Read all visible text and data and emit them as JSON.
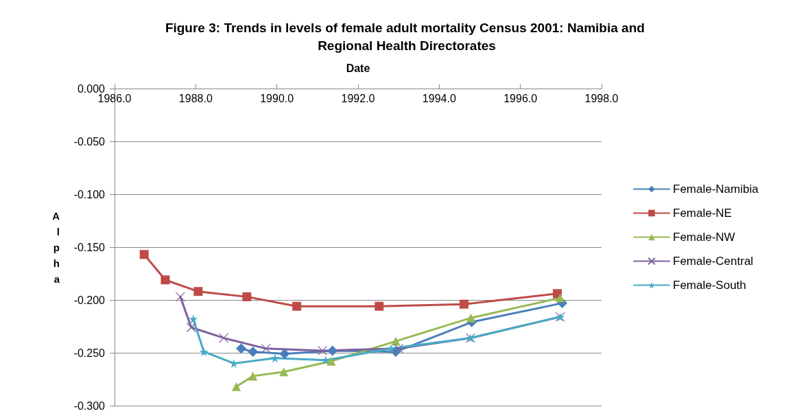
{
  "chart_data": {
    "type": "line",
    "title": "Figure 3: Trends in levels of female adult mortality Census 2001: Namibia and Regional Health Directorates",
    "xlabel": "Date",
    "ylabel": "Alpha",
    "xlim": [
      1986,
      1998
    ],
    "xticks": [
      {
        "value": 1986,
        "label": "1986.0"
      },
      {
        "value": 1988,
        "label": "1988.0"
      },
      {
        "value": 1990,
        "label": "1990.0"
      },
      {
        "value": 1992,
        "label": "1992.0"
      },
      {
        "value": 1994,
        "label": "1994.0"
      },
      {
        "value": 1996,
        "label": "1996.0"
      },
      {
        "value": 1998,
        "label": "1998.0"
      }
    ],
    "ylim": [
      -0.3,
      0
    ],
    "yticks": [
      {
        "value": -0.3,
        "label": "-0.300"
      },
      {
        "value": -0.25,
        "label": "-0.250"
      },
      {
        "value": -0.2,
        "label": "-0.200"
      },
      {
        "value": -0.15,
        "label": "-0.150"
      },
      {
        "value": -0.1,
        "label": "-0.100"
      },
      {
        "value": -0.05,
        "label": "-0.050"
      },
      {
        "value": 0,
        "label": "0.000"
      }
    ],
    "grid": "y",
    "legend": "right",
    "line_style": "solid",
    "series": [
      {
        "name": "Female-Namibia",
        "color": "#4a7ebb",
        "marker": "diamond",
        "x": [
          1989.12,
          1989.41,
          1990.19,
          1991.37,
          1992.93,
          1994.8,
          1997.03
        ],
        "values": [
          -0.246,
          -0.249,
          -0.251,
          -0.248,
          -0.249,
          -0.221,
          -0.203
        ]
      },
      {
        "name": "Female-NE",
        "color": "#be4b48",
        "marker": "square",
        "x": [
          1986.73,
          1987.25,
          1988.06,
          1989.26,
          1990.49,
          1992.52,
          1994.61,
          1996.91
        ],
        "values": [
          -0.157,
          -0.181,
          -0.192,
          -0.197,
          -0.206,
          -0.206,
          -0.204,
          -0.194
        ]
      },
      {
        "name": "Female-NW",
        "color": "#98b954",
        "marker": "triangle",
        "x": [
          1989.0,
          1989.41,
          1990.17,
          1991.34,
          1992.93,
          1994.78,
          1996.98
        ],
        "values": [
          -0.282,
          -0.272,
          -0.268,
          -0.258,
          -0.239,
          -0.217,
          -0.198
        ]
      },
      {
        "name": "Female-Central",
        "color": "#7d60a0",
        "marker": "cross",
        "x": [
          1987.62,
          1987.89,
          1988.69,
          1989.73,
          1991.12,
          1993.0,
          1994.77,
          1996.98
        ],
        "values": [
          -0.197,
          -0.226,
          -0.236,
          -0.246,
          -0.248,
          -0.246,
          -0.236,
          -0.216
        ]
      },
      {
        "name": "Female-South",
        "color": "#46aac5",
        "marker": "star",
        "x": [
          1987.94,
          1988.2,
          1988.94,
          1989.95,
          1991.2,
          1992.81,
          1994.77,
          1996.98
        ],
        "values": [
          -0.218,
          -0.249,
          -0.26,
          -0.255,
          -0.257,
          -0.246,
          -0.236,
          -0.216
        ]
      }
    ]
  }
}
